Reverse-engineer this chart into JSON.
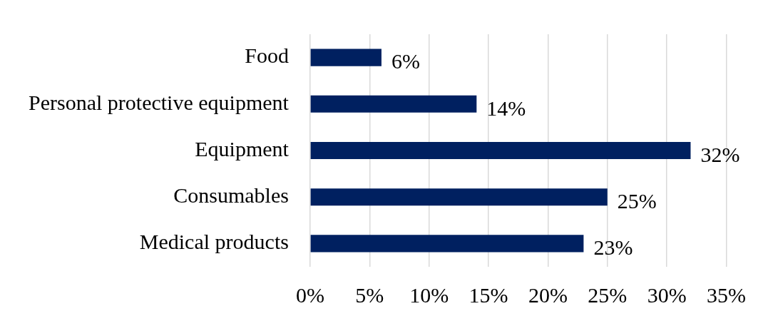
{
  "chart_data": {
    "type": "bar",
    "orientation": "horizontal",
    "categories": [
      "Food",
      "Personal protective equipment",
      "Equipment",
      "Consumables",
      "Medical products"
    ],
    "values": [
      6,
      14,
      32,
      25,
      23
    ],
    "value_labels": [
      "6%",
      "14%",
      "32%",
      "25%",
      "23%"
    ],
    "color": "#002060",
    "xlim": [
      0,
      35
    ],
    "xticks": [
      {
        "value": 0,
        "label": "0%"
      },
      {
        "value": 5,
        "label": "5%"
      },
      {
        "value": 10,
        "label": "10%"
      },
      {
        "value": 15,
        "label": "15%"
      },
      {
        "value": 20,
        "label": "20%"
      },
      {
        "value": 25,
        "label": "25%"
      },
      {
        "value": 30,
        "label": "30%"
      },
      {
        "value": 35,
        "label": "35%"
      }
    ],
    "grid": "x",
    "legend": false
  }
}
